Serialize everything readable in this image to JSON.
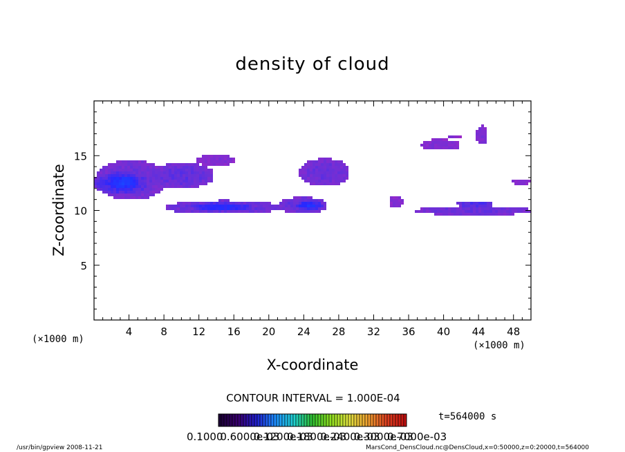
{
  "chart_data": {
    "type": "heatmap",
    "title": "density of cloud",
    "xlabel": "X-coordinate",
    "ylabel": "Z-coordinate",
    "x_unit_left": "(×1000 m)",
    "x_unit_right": "(×1000 m)",
    "xlim": [
      0,
      50
    ],
    "ylim": [
      0,
      20
    ],
    "xticks": [
      4,
      8,
      12,
      16,
      20,
      24,
      28,
      32,
      36,
      40,
      44,
      48
    ],
    "yticks": [
      5,
      10,
      15
    ],
    "contour_interval_text": "CONTOUR INTERVAL = 1.000E-04",
    "time_text": "t=564000 s",
    "colorbar_labels": [
      "0.1000",
      "0.6000e-03",
      "0.1200e-03",
      "0.1800e-03",
      "0.2400e-03",
      "0.3000e-03",
      "0.7000e-03"
    ],
    "colormap": [
      "#1a0033",
      "#3a0070",
      "#2020d0",
      "#1e8fff",
      "#20d0d0",
      "#30c030",
      "#90e020",
      "#e0e040",
      "#f0a030",
      "#e04020",
      "#c01010"
    ],
    "regions": [
      {
        "x": [
          0.2,
          8.0
        ],
        "z": [
          11.2,
          14.6
        ],
        "level": 0.35
      },
      {
        "x": [
          0.0,
          6.0
        ],
        "z": [
          11.6,
          13.6
        ],
        "level": 0.6
      },
      {
        "x": [
          1.5,
          5.0
        ],
        "z": [
          12.0,
          13.3
        ],
        "level": 0.85
      },
      {
        "x": [
          6.5,
          13.5
        ],
        "z": [
          12.2,
          14.4
        ],
        "level": 0.4
      },
      {
        "x": [
          11.5,
          16.0
        ],
        "z": [
          14.2,
          15.2
        ],
        "level": 0.2
      },
      {
        "x": [
          8.3,
          21.0
        ],
        "z": [
          9.8,
          11.0
        ],
        "level": 0.4
      },
      {
        "x": [
          11.0,
          18.0
        ],
        "z": [
          10.1,
          10.8
        ],
        "level": 0.7
      },
      {
        "x": [
          21.0,
          26.5
        ],
        "z": [
          9.9,
          11.3
        ],
        "level": 0.4
      },
      {
        "x": [
          23.0,
          26.0
        ],
        "z": [
          10.2,
          10.9
        ],
        "level": 0.75
      },
      {
        "x": [
          23.5,
          29.0
        ],
        "z": [
          12.4,
          14.8
        ],
        "level": 0.35
      },
      {
        "x": [
          33.6,
          35.2
        ],
        "z": [
          10.3,
          11.4
        ],
        "level": 0.2
      },
      {
        "x": [
          37.3,
          41.6
        ],
        "z": [
          15.6,
          16.6
        ],
        "level": 0.2
      },
      {
        "x": [
          40.3,
          41.8
        ],
        "z": [
          16.6,
          17.0
        ],
        "level": 0.15
      },
      {
        "x": [
          43.6,
          44.9
        ],
        "z": [
          16.2,
          17.8
        ],
        "level": 0.25
      },
      {
        "x": [
          37.0,
          49.8
        ],
        "z": [
          9.7,
          10.5
        ],
        "level": 0.35
      },
      {
        "x": [
          41.5,
          45.5
        ],
        "z": [
          10.4,
          11.0
        ],
        "level": 0.5
      },
      {
        "x": [
          47.6,
          49.9
        ],
        "z": [
          12.5,
          13.0
        ],
        "level": 0.2
      }
    ]
  },
  "footer": {
    "left": "/usr/bin/gpview   2008-11-21",
    "right": "MarsCond_DensCloud.nc@DensCloud,x=0:50000,z=0:20000,t=564000"
  }
}
